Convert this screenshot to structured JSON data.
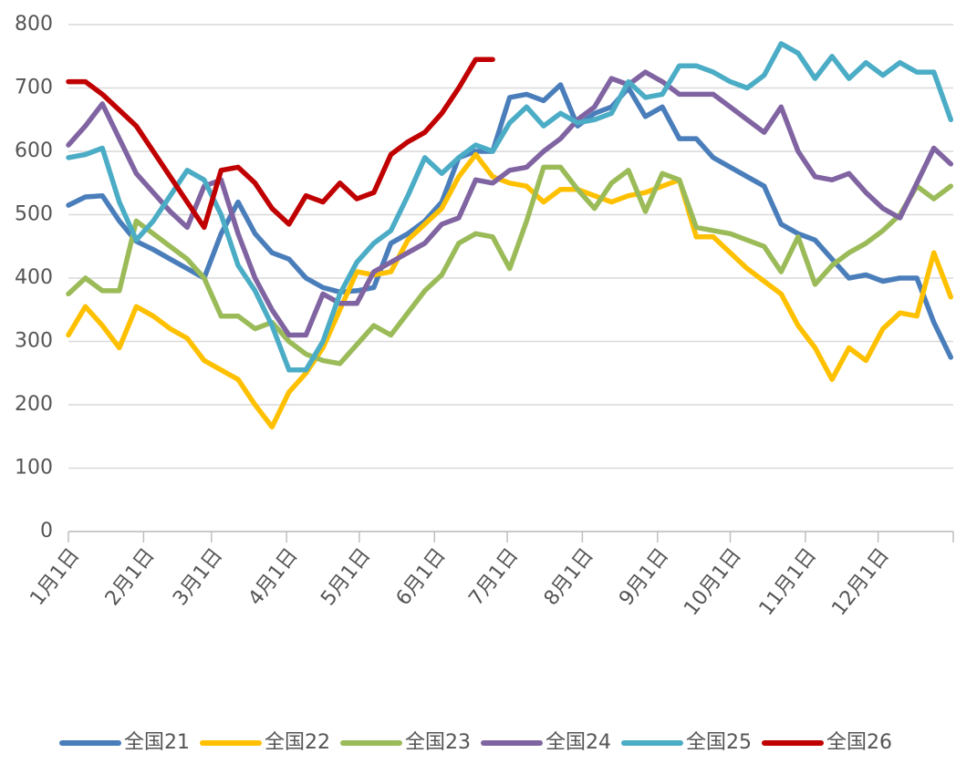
{
  "chart_data": {
    "type": "line",
    "x": [
      1,
      8,
      15,
      22,
      29,
      36,
      43,
      50,
      57,
      64,
      71,
      78,
      85,
      92,
      99,
      106,
      113,
      120,
      127,
      134,
      141,
      148,
      155,
      162,
      169,
      176,
      183,
      190,
      197,
      204,
      211,
      218,
      225,
      232,
      239,
      246,
      253,
      260,
      267,
      274,
      281,
      288,
      295,
      302,
      309,
      316,
      323,
      330,
      337,
      344,
      351,
      358,
      365
    ],
    "xlim": [
      1,
      366
    ],
    "xticks": [
      {
        "value": 1,
        "label": "1月1日"
      },
      {
        "value": 32,
        "label": "2月1日"
      },
      {
        "value": 60,
        "label": "3月1日"
      },
      {
        "value": 91,
        "label": "4月1日"
      },
      {
        "value": 121,
        "label": "5月1日"
      },
      {
        "value": 152,
        "label": "6月1日"
      },
      {
        "value": 182,
        "label": "7月1日"
      },
      {
        "value": 213,
        "label": "8月1日"
      },
      {
        "value": 244,
        "label": "9月1日"
      },
      {
        "value": 274,
        "label": "10月1日"
      },
      {
        "value": 305,
        "label": "11月1日"
      },
      {
        "value": 335,
        "label": "12月1日"
      }
    ],
    "ylim": [
      0,
      800
    ],
    "yticks": [
      0,
      100,
      200,
      300,
      400,
      500,
      600,
      700,
      800
    ],
    "grid": true,
    "legend": "bottom",
    "series": [
      {
        "name": "全国21",
        "color": "#4a7ebb",
        "values": [
          515,
          528,
          530,
          490,
          458,
          445,
          430,
          415,
          400,
          470,
          520,
          470,
          440,
          430,
          400,
          385,
          378,
          380,
          385,
          455,
          470,
          490,
          520,
          590,
          600,
          600,
          685,
          690,
          680,
          705,
          640,
          660,
          670,
          700,
          655,
          670,
          620,
          620,
          590,
          575,
          560,
          545,
          485,
          470,
          460,
          430,
          400,
          405,
          395,
          400,
          400,
          330,
          275
        ]
      },
      {
        "name": "全国22",
        "color": "#ffc000",
        "values": [
          310,
          355,
          325,
          290,
          355,
          340,
          320,
          305,
          270,
          255,
          240,
          200,
          165,
          220,
          250,
          290,
          350,
          410,
          405,
          410,
          460,
          485,
          510,
          560,
          595,
          560,
          550,
          545,
          520,
          540,
          540,
          530,
          520,
          530,
          535,
          545,
          555,
          465,
          465,
          440,
          415,
          395,
          375,
          325,
          290,
          240,
          290,
          270,
          320,
          345,
          340,
          440,
          370
        ]
      },
      {
        "name": "全国23",
        "color": "#9bbb59",
        "values": [
          375,
          400,
          380,
          380,
          490,
          470,
          450,
          430,
          400,
          340,
          340,
          320,
          330,
          300,
          280,
          270,
          265,
          295,
          325,
          310,
          345,
          380,
          405,
          455,
          470,
          465,
          415,
          490,
          575,
          575,
          540,
          510,
          550,
          570,
          505,
          565,
          555,
          480,
          475,
          470,
          460,
          450,
          410,
          465,
          390,
          420,
          440,
          455,
          475,
          500,
          545,
          525,
          545
        ]
      },
      {
        "name": "全国24",
        "color": "#8064a2",
        "values": [
          610,
          640,
          675,
          620,
          565,
          535,
          505,
          480,
          545,
          555,
          470,
          400,
          350,
          310,
          310,
          375,
          360,
          360,
          410,
          425,
          440,
          455,
          485,
          495,
          555,
          550,
          570,
          575,
          600,
          620,
          650,
          670,
          715,
          705,
          725,
          710,
          690,
          690,
          690,
          670,
          650,
          630,
          670,
          600,
          560,
          555,
          565,
          535,
          510,
          495,
          550,
          605,
          580
        ]
      },
      {
        "name": "全国25",
        "color": "#4bacc6",
        "values": [
          590,
          595,
          605,
          520,
          460,
          490,
          530,
          570,
          555,
          500,
          420,
          380,
          325,
          255,
          255,
          300,
          375,
          425,
          455,
          475,
          530,
          590,
          565,
          590,
          610,
          600,
          645,
          670,
          640,
          660,
          645,
          650,
          660,
          710,
          685,
          690,
          735,
          735,
          725,
          710,
          700,
          720,
          770,
          755,
          715,
          750,
          715,
          740,
          720,
          740,
          725,
          725,
          650
        ]
      },
      {
        "name": "全国26",
        "color": "#c00000",
        "values": [
          710,
          710,
          690,
          665,
          640,
          600,
          560,
          520,
          480,
          570,
          575,
          550,
          510,
          485,
          530,
          520,
          550,
          525,
          535,
          595,
          615,
          630,
          660,
          700,
          745,
          745,
          null,
          null,
          null,
          null,
          null,
          null,
          null,
          null,
          null,
          null,
          null,
          null,
          null,
          null,
          null,
          null,
          null,
          null,
          null,
          null,
          null,
          null,
          null,
          null,
          null,
          null,
          null
        ]
      }
    ]
  }
}
